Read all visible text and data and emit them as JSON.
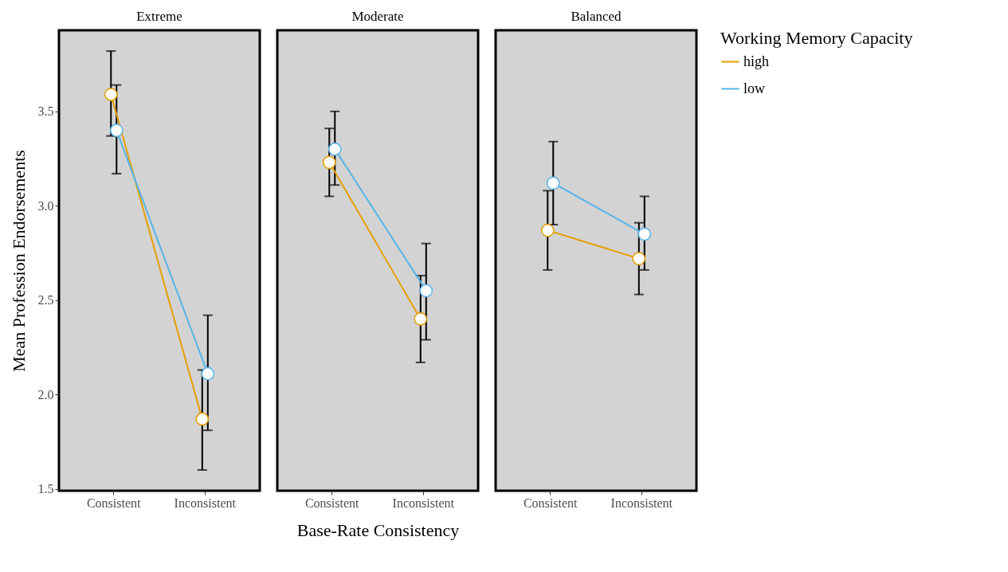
{
  "chart_data": [
    {
      "type": "line",
      "title": "Extreme",
      "ylabel": "Mean Profession Endorsements",
      "categories": [
        "Consistent",
        "Inconsistent"
      ],
      "marker": "circle",
      "grid": false,
      "ylim": [
        1.49,
        3.93
      ],
      "yticks": [
        {
          "value": 1.5,
          "label": "1.5"
        },
        {
          "value": 2.0,
          "label": "2.0"
        },
        {
          "value": 2.5,
          "label": "2.5"
        },
        {
          "value": 3.0,
          "label": "3.0"
        },
        {
          "value": 3.5,
          "label": "3.5"
        }
      ],
      "series": [
        {
          "color": "#e69f00",
          "values": [
            3.59,
            1.87
          ],
          "errors": [
            [
              3.37,
              3.82
            ],
            [
              1.6,
              2.13
            ]
          ]
        },
        {
          "color": "#56b4e9",
          "values": [
            3.4,
            2.11
          ],
          "errors": [
            [
              3.17,
              3.64
            ],
            [
              1.81,
              2.42
            ]
          ]
        }
      ]
    },
    {
      "type": "line",
      "title": "Moderate",
      "xlabel": "Base-Rate Consistency",
      "categories": [
        "Consistent",
        "Inconsistent"
      ],
      "marker": "circle",
      "grid": false,
      "tick_labels": "x",
      "ylim": [
        1.49,
        3.93
      ],
      "series": [
        {
          "color": "#e69f00",
          "values": [
            3.23,
            2.4
          ],
          "errors": [
            [
              3.05,
              3.41
            ],
            [
              2.17,
              2.63
            ]
          ]
        },
        {
          "color": "#56b4e9",
          "values": [
            3.3,
            2.55
          ],
          "errors": [
            [
              3.11,
              3.5
            ],
            [
              2.29,
              2.8
            ]
          ]
        }
      ]
    },
    {
      "type": "line",
      "title": "Balanced",
      "categories": [
        "Consistent",
        "Inconsistent"
      ],
      "marker": "circle",
      "grid": false,
      "tick_labels": "x",
      "ylim": [
        1.49,
        3.93
      ],
      "legend": "right",
      "legend_title": "Working Memory Capacity",
      "series": [
        {
          "name": "high",
          "color": "#e69f00",
          "values": [
            2.87,
            2.72
          ],
          "errors": [
            [
              2.66,
              3.08
            ],
            [
              2.53,
              2.91
            ]
          ]
        },
        {
          "name": "low",
          "color": "#56b4e9",
          "values": [
            3.12,
            2.85
          ],
          "errors": [
            [
              2.9,
              3.34
            ],
            [
              2.66,
              3.05
            ]
          ]
        }
      ]
    }
  ]
}
